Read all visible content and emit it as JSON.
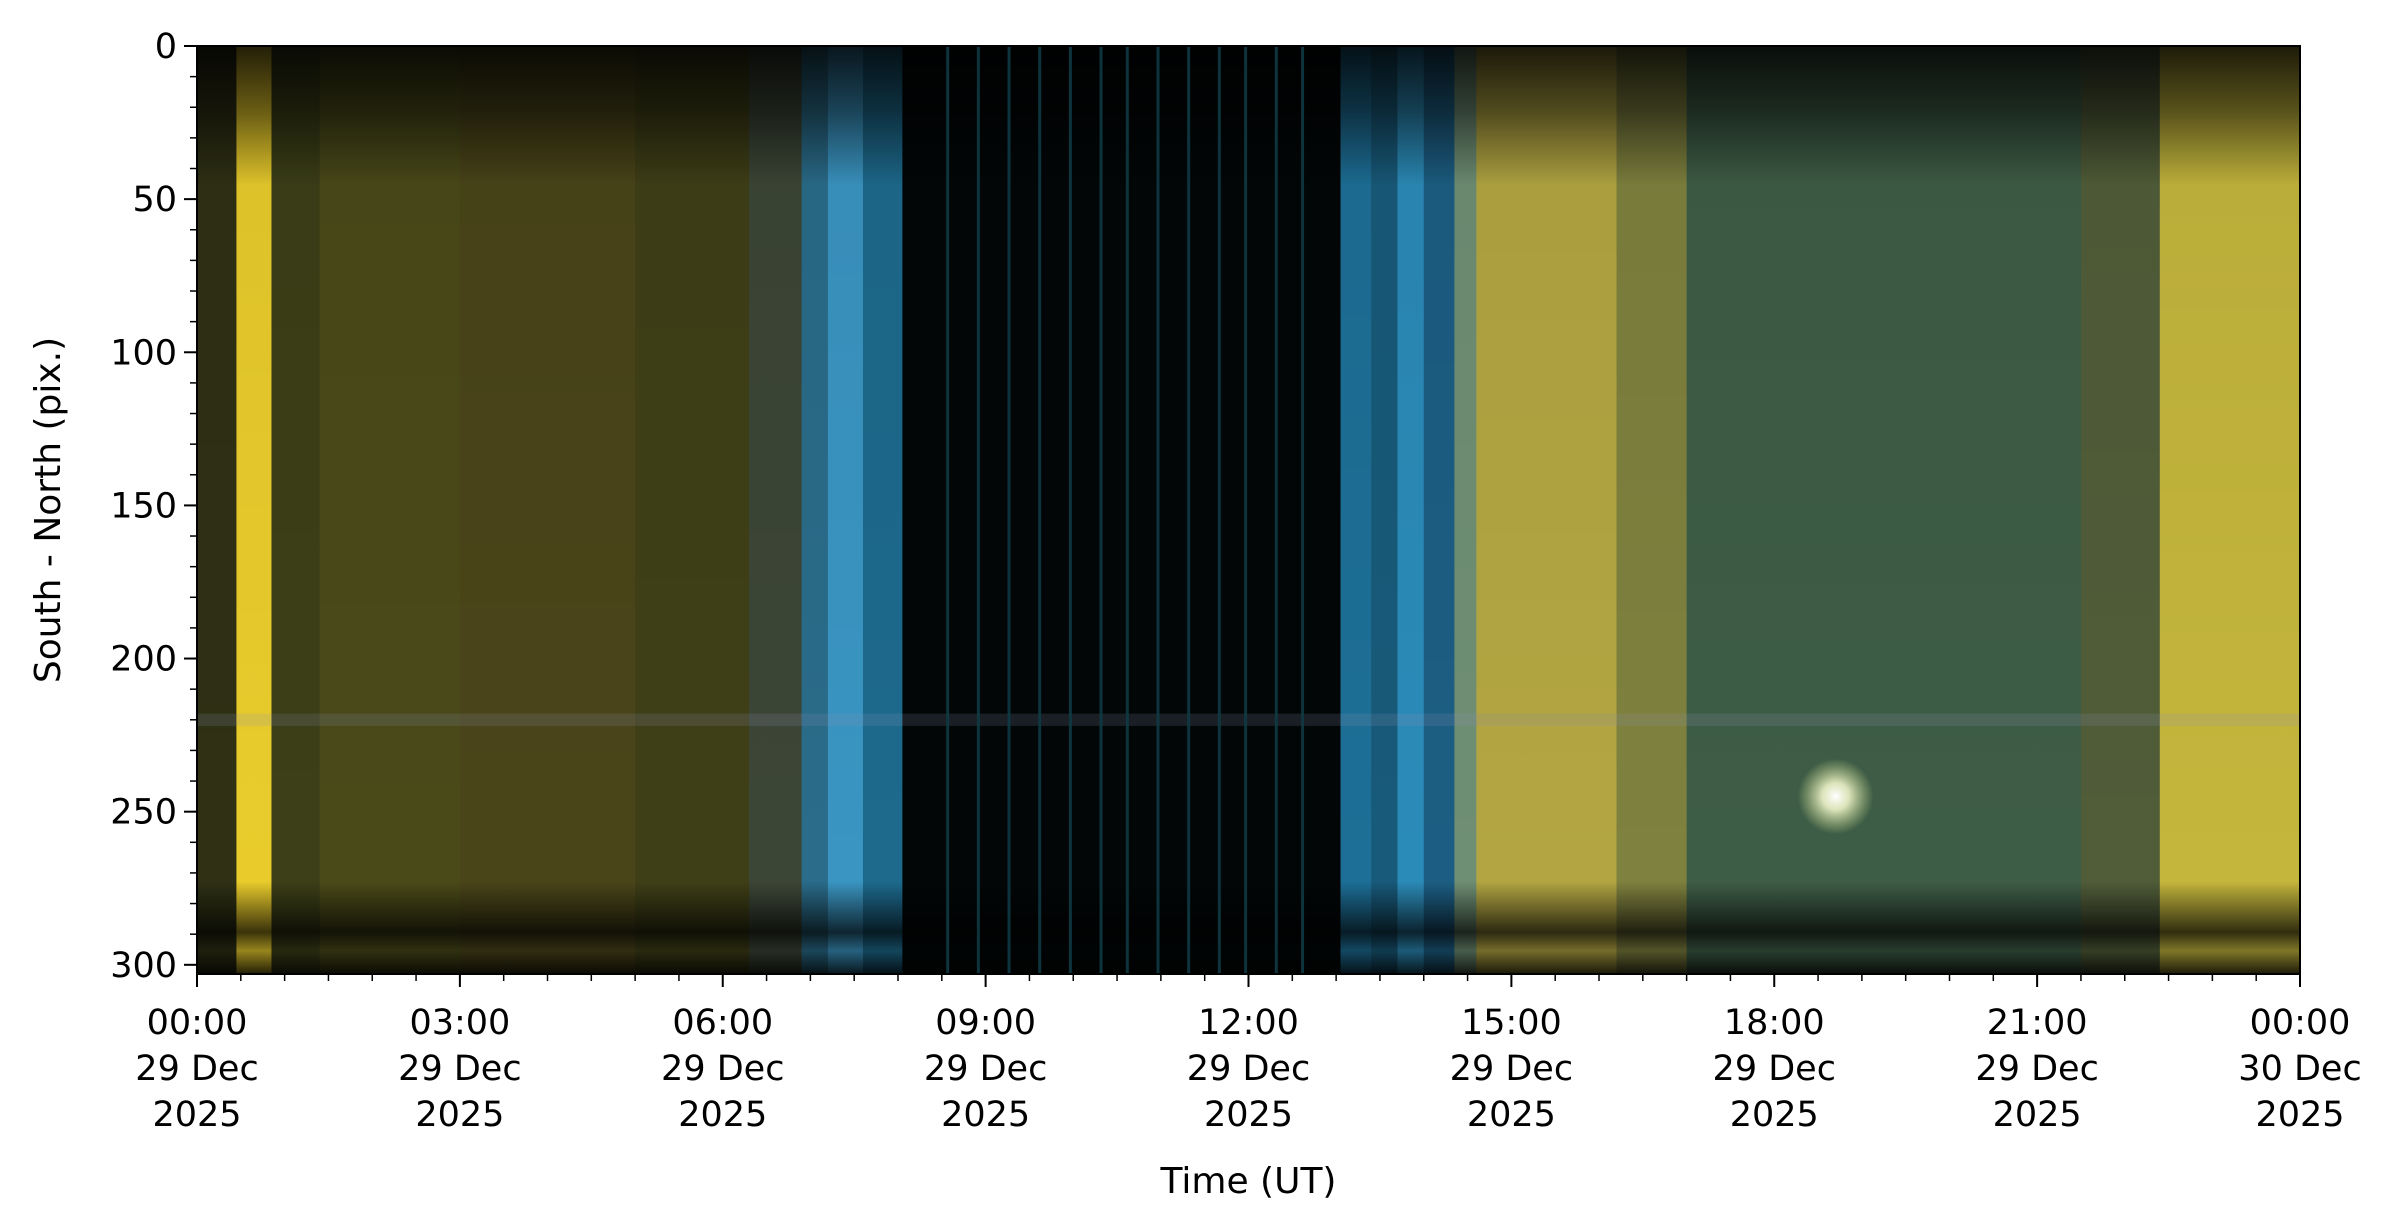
{
  "chart_data": {
    "type": "heatmap",
    "title": "",
    "xlabel": "Time (UT)",
    "ylabel": "South - North (pix.)",
    "xlim": [
      "2025-12-29T00:00",
      "2025-12-30T00:00"
    ],
    "ylim": [
      303,
      0
    ],
    "y_inverted": true,
    "grid": false,
    "x_ticks": [
      {
        "time": "2025-12-29T00:00",
        "lines": [
          "00:00",
          "29 Dec",
          "2025"
        ]
      },
      {
        "time": "2025-12-29T03:00",
        "lines": [
          "03:00",
          "29 Dec",
          "2025"
        ]
      },
      {
        "time": "2025-12-29T06:00",
        "lines": [
          "06:00",
          "29 Dec",
          "2025"
        ]
      },
      {
        "time": "2025-12-29T09:00",
        "lines": [
          "09:00",
          "29 Dec",
          "2025"
        ]
      },
      {
        "time": "2025-12-29T12:00",
        "lines": [
          "12:00",
          "29 Dec",
          "2025"
        ]
      },
      {
        "time": "2025-12-29T15:00",
        "lines": [
          "15:00",
          "29 Dec",
          "2025"
        ]
      },
      {
        "time": "2025-12-29T18:00",
        "lines": [
          "18:00",
          "29 Dec",
          "2025"
        ]
      },
      {
        "time": "2025-12-29T21:00",
        "lines": [
          "21:00",
          "29 Dec",
          "2025"
        ]
      },
      {
        "time": "2025-12-30T00:00",
        "lines": [
          "00:00",
          "30 Dec",
          "2025"
        ]
      }
    ],
    "y_ticks": [
      0,
      50,
      100,
      150,
      200,
      250,
      300
    ],
    "y_minor_step": 10,
    "x_minor_step_hours": 0.5,
    "bands": [
      {
        "t0": 0.0,
        "t1": 0.45,
        "color": "#2f3014"
      },
      {
        "t0": 0.45,
        "t1": 0.85,
        "color": "#e9cc2c"
      },
      {
        "t0": 0.85,
        "t1": 1.4,
        "color": "#3c3f17"
      },
      {
        "t0": 1.4,
        "t1": 3.0,
        "color": "#4a4a19"
      },
      {
        "t0": 3.0,
        "t1": 5.0,
        "color": "#4a4519"
      },
      {
        "t0": 5.0,
        "t1": 6.3,
        "color": "#3f3f17"
      },
      {
        "t0": 6.3,
        "t1": 6.9,
        "color": "#3c4636"
      },
      {
        "t0": 6.9,
        "t1": 7.2,
        "color": "#2a6c8a"
      },
      {
        "t0": 7.2,
        "t1": 7.6,
        "color": "#3a95c2"
      },
      {
        "t0": 7.6,
        "t1": 8.05,
        "color": "#1d6a8d"
      },
      {
        "t0": 8.05,
        "t1": 13.05,
        "color": "#020607"
      },
      {
        "t0": 13.05,
        "t1": 13.4,
        "color": "#1d6f97"
      },
      {
        "t0": 13.4,
        "t1": 13.7,
        "color": "#185a7a"
      },
      {
        "t0": 13.7,
        "t1": 14.0,
        "color": "#2b8bb8"
      },
      {
        "t0": 14.0,
        "t1": 14.35,
        "color": "#1c5e83"
      },
      {
        "t0": 14.35,
        "t1": 14.6,
        "color": "#6f8f74"
      },
      {
        "t0": 14.6,
        "t1": 16.2,
        "color": "#b3a642"
      },
      {
        "t0": 16.2,
        "t1": 17.0,
        "color": "#7f813e"
      },
      {
        "t0": 17.0,
        "t1": 21.5,
        "color": "#3e5d46"
      },
      {
        "t0": 21.5,
        "t1": 22.4,
        "color": "#515d39"
      },
      {
        "t0": 22.4,
        "t1": 24.0,
        "color": "#c4b63c"
      }
    ],
    "dark_streaks_hours": [
      8.55,
      8.9,
      9.25,
      9.6,
      9.95,
      10.3,
      10.6,
      10.95,
      11.3,
      11.65,
      11.95,
      12.3,
      12.6
    ],
    "bright_spot": {
      "time_hours": 18.7,
      "y": 245,
      "color": "#f4f7d2"
    }
  }
}
